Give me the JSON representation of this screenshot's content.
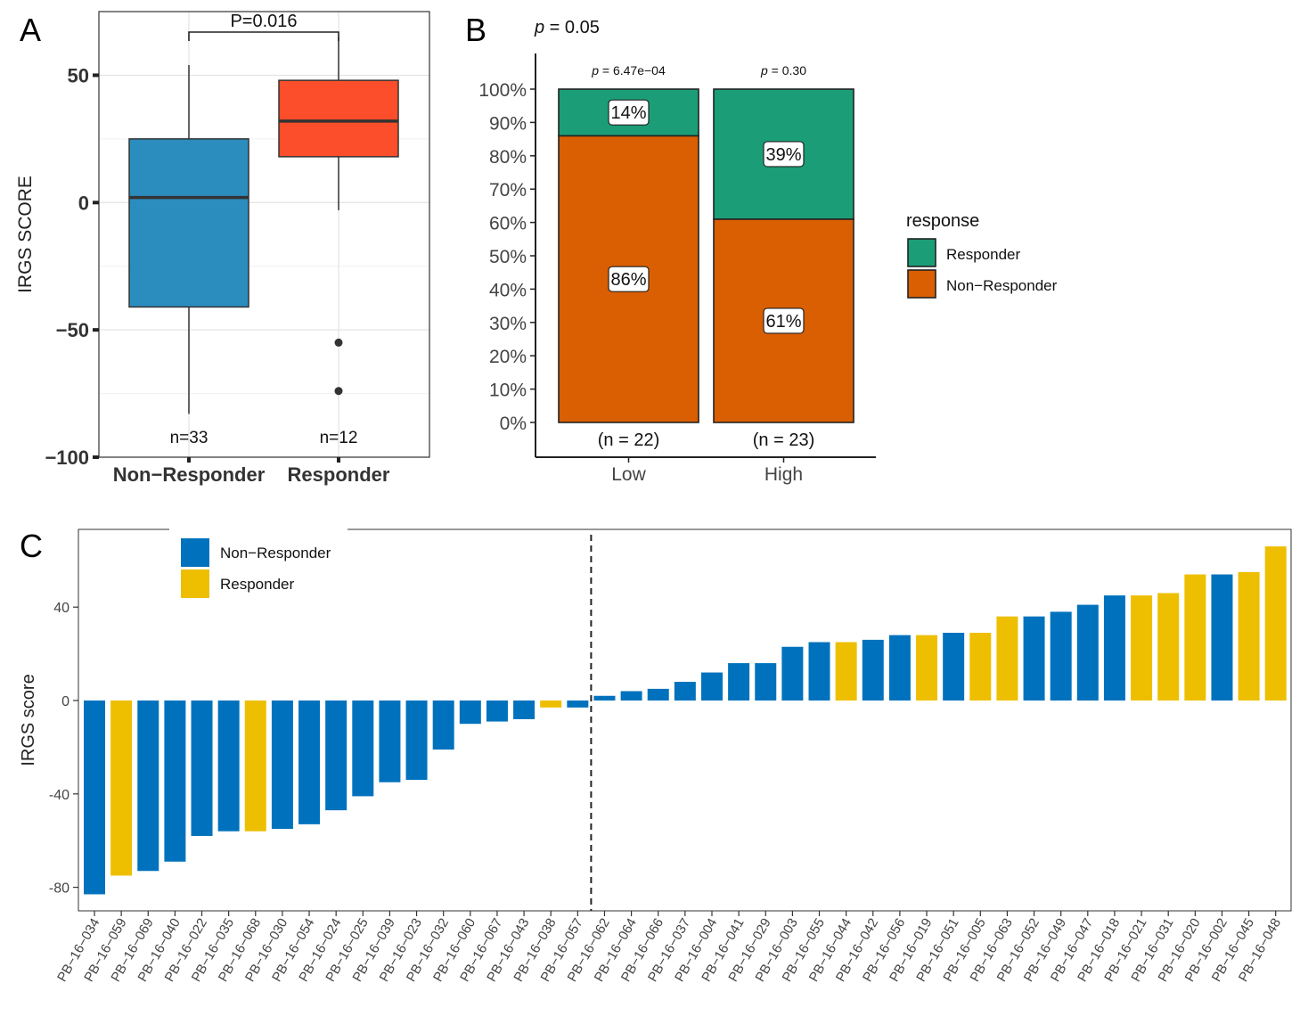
{
  "panel_labels": {
    "a": "A",
    "b": "B",
    "c": "C"
  },
  "colors": {
    "nonresp_box": "#2b8cbe",
    "resp_box": "#fc4e2a",
    "b_responder": "#1b9e77",
    "b_nonresponder": "#d95f02",
    "c_nonresponder": "#0072bd",
    "c_responder": "#edbf00"
  },
  "chart_data": [
    {
      "type": "box",
      "panel": "A",
      "ylabel": "IRGS SCORE",
      "xlabel": "",
      "ylim": [
        -100,
        75
      ],
      "yticks": [
        -100,
        -50,
        0,
        50
      ],
      "ytick_labels": [
        "−100",
        "−50",
        "0",
        "50"
      ],
      "categories": [
        "Non−Responder",
        "Responder"
      ],
      "boxes": [
        {
          "name": "Non−Responder",
          "min": -83,
          "q1": -41,
          "median": 2,
          "q3": 25,
          "max": 54,
          "outliers": [],
          "n_label": "n=33"
        },
        {
          "name": "Responder",
          "min": -3,
          "q1": 18,
          "median": 32,
          "q3": 48,
          "max": 65,
          "outliers": [
            -55,
            -74
          ],
          "n_label": "n=12"
        }
      ],
      "significance": "P=0.016"
    },
    {
      "type": "stacked_bar",
      "panel": "B",
      "overall_p": "0.05",
      "overall_p_prefix": "p",
      "overall_p_eq": " = ",
      "categories": [
        "Low",
        "High"
      ],
      "n_labels": [
        "(n = 22)",
        "(n = 23)"
      ],
      "group_p": [
        "6.47e−04",
        "0.30"
      ],
      "group_p_prefix": "p",
      "group_p_eq": " = ",
      "ylim": [
        0,
        100
      ],
      "ytick_labels": [
        "0%",
        "10%",
        "20%",
        "30%",
        "40%",
        "50%",
        "60%",
        "70%",
        "80%",
        "90%",
        "100%"
      ],
      "series": [
        {
          "name": "Non−Responder",
          "values": [
            86,
            61
          ],
          "labels": [
            "86%",
            "61%"
          ]
        },
        {
          "name": "Responder",
          "values": [
            14,
            39
          ],
          "labels": [
            "14%",
            "39%"
          ]
        }
      ],
      "legend_title": "response",
      "legend": [
        "Responder",
        "Non−Responder"
      ]
    },
    {
      "type": "bar",
      "panel": "C",
      "ylabel": "IRGS score",
      "ylim": [
        -90,
        72
      ],
      "yticks": [
        -80,
        -40,
        0,
        40
      ],
      "ytick_labels": [
        "-80",
        "-40",
        "0",
        "40"
      ],
      "legend": [
        "Non−Responder",
        "Responder"
      ],
      "categories": [
        "PB−16−034",
        "PB−16−059",
        "PB−16−069",
        "PB−16−040",
        "PB−16−022",
        "PB−16−035",
        "PB−16−068",
        "PB−16−030",
        "PB−16−054",
        "PB−16−024",
        "PB−16−025",
        "PB−16−039",
        "PB−16−023",
        "PB−16−032",
        "PB−16−060",
        "PB−16−067",
        "PB−16−043",
        "PB−16−038",
        "PB−16−057",
        "PB−16−062",
        "PB−16−064",
        "PB−16−066",
        "PB−16−037",
        "PB−16−004",
        "PB−16−041",
        "PB−16−029",
        "PB−16−003",
        "PB−16−055",
        "PB−16−044",
        "PB−16−042",
        "PB−16−056",
        "PB−16−019",
        "PB−16−051",
        "PB−16−005",
        "PB−16−063",
        "PB−16−052",
        "PB−16−049",
        "PB−16−047",
        "PB−16−018",
        "PB−16−021",
        "PB−16−031",
        "PB−16−020",
        "PB−16−002",
        "PB−16−045",
        "PB−16−048"
      ],
      "values": [
        -83,
        -75,
        -73,
        -69,
        -58,
        -56,
        -56,
        -55,
        -53,
        -47,
        -41,
        -35,
        -34,
        -21,
        -10,
        -9,
        -8,
        -3,
        -3,
        2,
        4,
        5,
        8,
        12,
        16,
        16,
        23,
        25,
        25,
        26,
        28,
        28,
        29,
        29,
        36,
        36,
        38,
        41,
        45,
        45,
        46,
        54,
        54,
        55,
        66
      ],
      "groups": [
        "N",
        "R",
        "N",
        "N",
        "N",
        "N",
        "R",
        "N",
        "N",
        "N",
        "N",
        "N",
        "N",
        "N",
        "N",
        "N",
        "N",
        "R",
        "N",
        "N",
        "N",
        "N",
        "N",
        "N",
        "N",
        "N",
        "N",
        "N",
        "R",
        "N",
        "N",
        "R",
        "N",
        "R",
        "R",
        "N",
        "N",
        "N",
        "N",
        "R",
        "R",
        "R",
        "N",
        "R",
        "R"
      ],
      "cutoff_after_index": 18
    }
  ]
}
